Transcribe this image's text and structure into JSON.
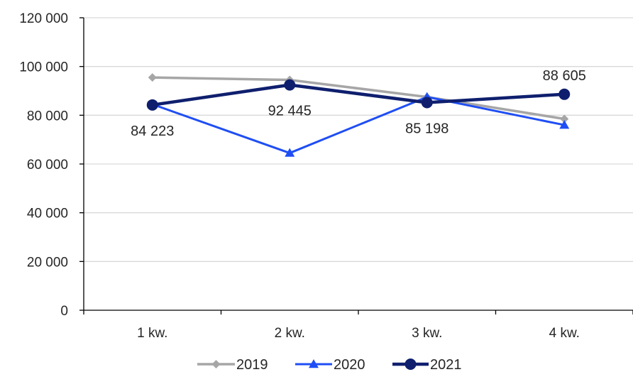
{
  "chart_data": {
    "type": "line",
    "categories": [
      "1 kw.",
      "2 kw.",
      "3 kw.",
      "4 kw."
    ],
    "series": [
      {
        "name": "2019",
        "values": [
          95500,
          94500,
          87500,
          78500
        ],
        "color": "#a6a6a6",
        "marker": "diamond"
      },
      {
        "name": "2020",
        "values": [
          84500,
          64500,
          87500,
          76000
        ],
        "color": "#1f4ef5",
        "marker": "triangle"
      },
      {
        "name": "2021",
        "values": [
          84223,
          92445,
          85198,
          88605
        ],
        "color": "#0f1f6e",
        "marker": "circle"
      }
    ],
    "data_labels": {
      "series": "2021",
      "texts": [
        "84 223",
        "92 445",
        "85 198",
        "88 605"
      ]
    },
    "yaxis": {
      "ylim": [
        0,
        120000
      ],
      "ticks": [
        0,
        20000,
        40000,
        60000,
        80000,
        100000,
        120000
      ],
      "tick_labels": [
        "0",
        "20 000",
        "40 000",
        "60 000",
        "80 000",
        "100 000",
        "120 000"
      ]
    },
    "grid": true,
    "legend": "bottom"
  }
}
